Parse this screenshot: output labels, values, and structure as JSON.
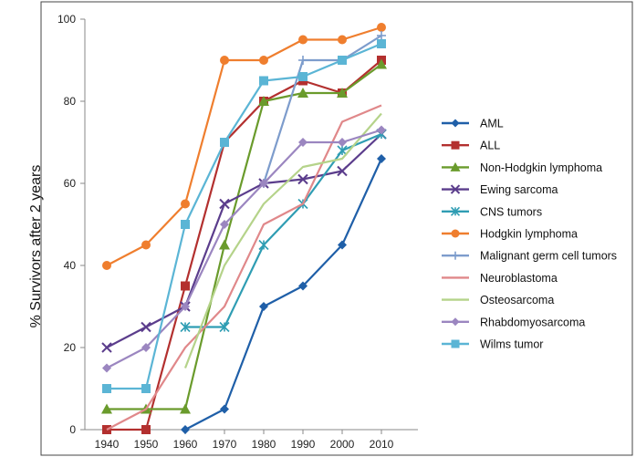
{
  "chart_data": {
    "type": "line",
    "title": "",
    "xlabel": "",
    "ylabel": "% Survivors after 2 years",
    "x": [
      1940,
      1950,
      1960,
      1970,
      1980,
      1990,
      2000,
      2010
    ],
    "x_tick_labels": [
      "1940",
      "1950",
      "1960",
      "1970",
      "1980",
      "1990",
      "2000",
      "2010"
    ],
    "ylim": [
      0,
      100
    ],
    "y_ticks": [
      0,
      20,
      40,
      60,
      80,
      100
    ],
    "y_tick_labels": [
      "0",
      "20",
      "40",
      "60",
      "80",
      "100"
    ],
    "grid": false,
    "legend_position": "right",
    "series": [
      {
        "name": "AML",
        "color": "#1f5fa8",
        "marker": "diamond",
        "values": [
          null,
          null,
          0,
          5,
          30,
          35,
          45,
          66
        ]
      },
      {
        "name": "ALL",
        "color": "#b3302f",
        "marker": "square",
        "values": [
          0,
          0,
          35,
          70,
          80,
          85,
          82,
          90
        ]
      },
      {
        "name": "Non-Hodgkin lymphoma",
        "color": "#6a9b2c",
        "marker": "triangle",
        "values": [
          5,
          5,
          5,
          45,
          80,
          82,
          82,
          89
        ]
      },
      {
        "name": "Ewing sarcoma",
        "color": "#5b3d8c",
        "marker": "x",
        "values": [
          20,
          25,
          30,
          55,
          60,
          61,
          63,
          72
        ]
      },
      {
        "name": "CNS tumors",
        "color": "#2f9db3",
        "marker": "star",
        "values": [
          null,
          null,
          25,
          25,
          45,
          55,
          68,
          72
        ]
      },
      {
        "name": "Hodgkin lymphoma",
        "color": "#ef7e2e",
        "marker": "circle",
        "values": [
          40,
          45,
          55,
          90,
          90,
          95,
          95,
          98
        ]
      },
      {
        "name": "Malignant germ cell tumors",
        "color": "#7d9ccc",
        "marker": "plus",
        "values": [
          null,
          null,
          null,
          null,
          60,
          90,
          90,
          96
        ]
      },
      {
        "name": "Neuroblastoma",
        "color": "#e0888a",
        "marker": "none",
        "values": [
          0,
          5,
          20,
          30,
          50,
          55,
          75,
          79
        ]
      },
      {
        "name": "Osteosarcoma",
        "color": "#b5d38a",
        "marker": "none",
        "values": [
          null,
          null,
          15,
          40,
          55,
          64,
          66,
          77
        ]
      },
      {
        "name": "Rhabdomyosarcoma",
        "color": "#9b86c0",
        "marker": "diamond",
        "values": [
          15,
          20,
          30,
          50,
          60,
          70,
          70,
          73
        ]
      },
      {
        "name": "Wilms tumor",
        "color": "#5bb5d5",
        "marker": "square",
        "values": [
          10,
          10,
          50,
          70,
          85,
          86,
          90,
          94
        ]
      }
    ]
  }
}
